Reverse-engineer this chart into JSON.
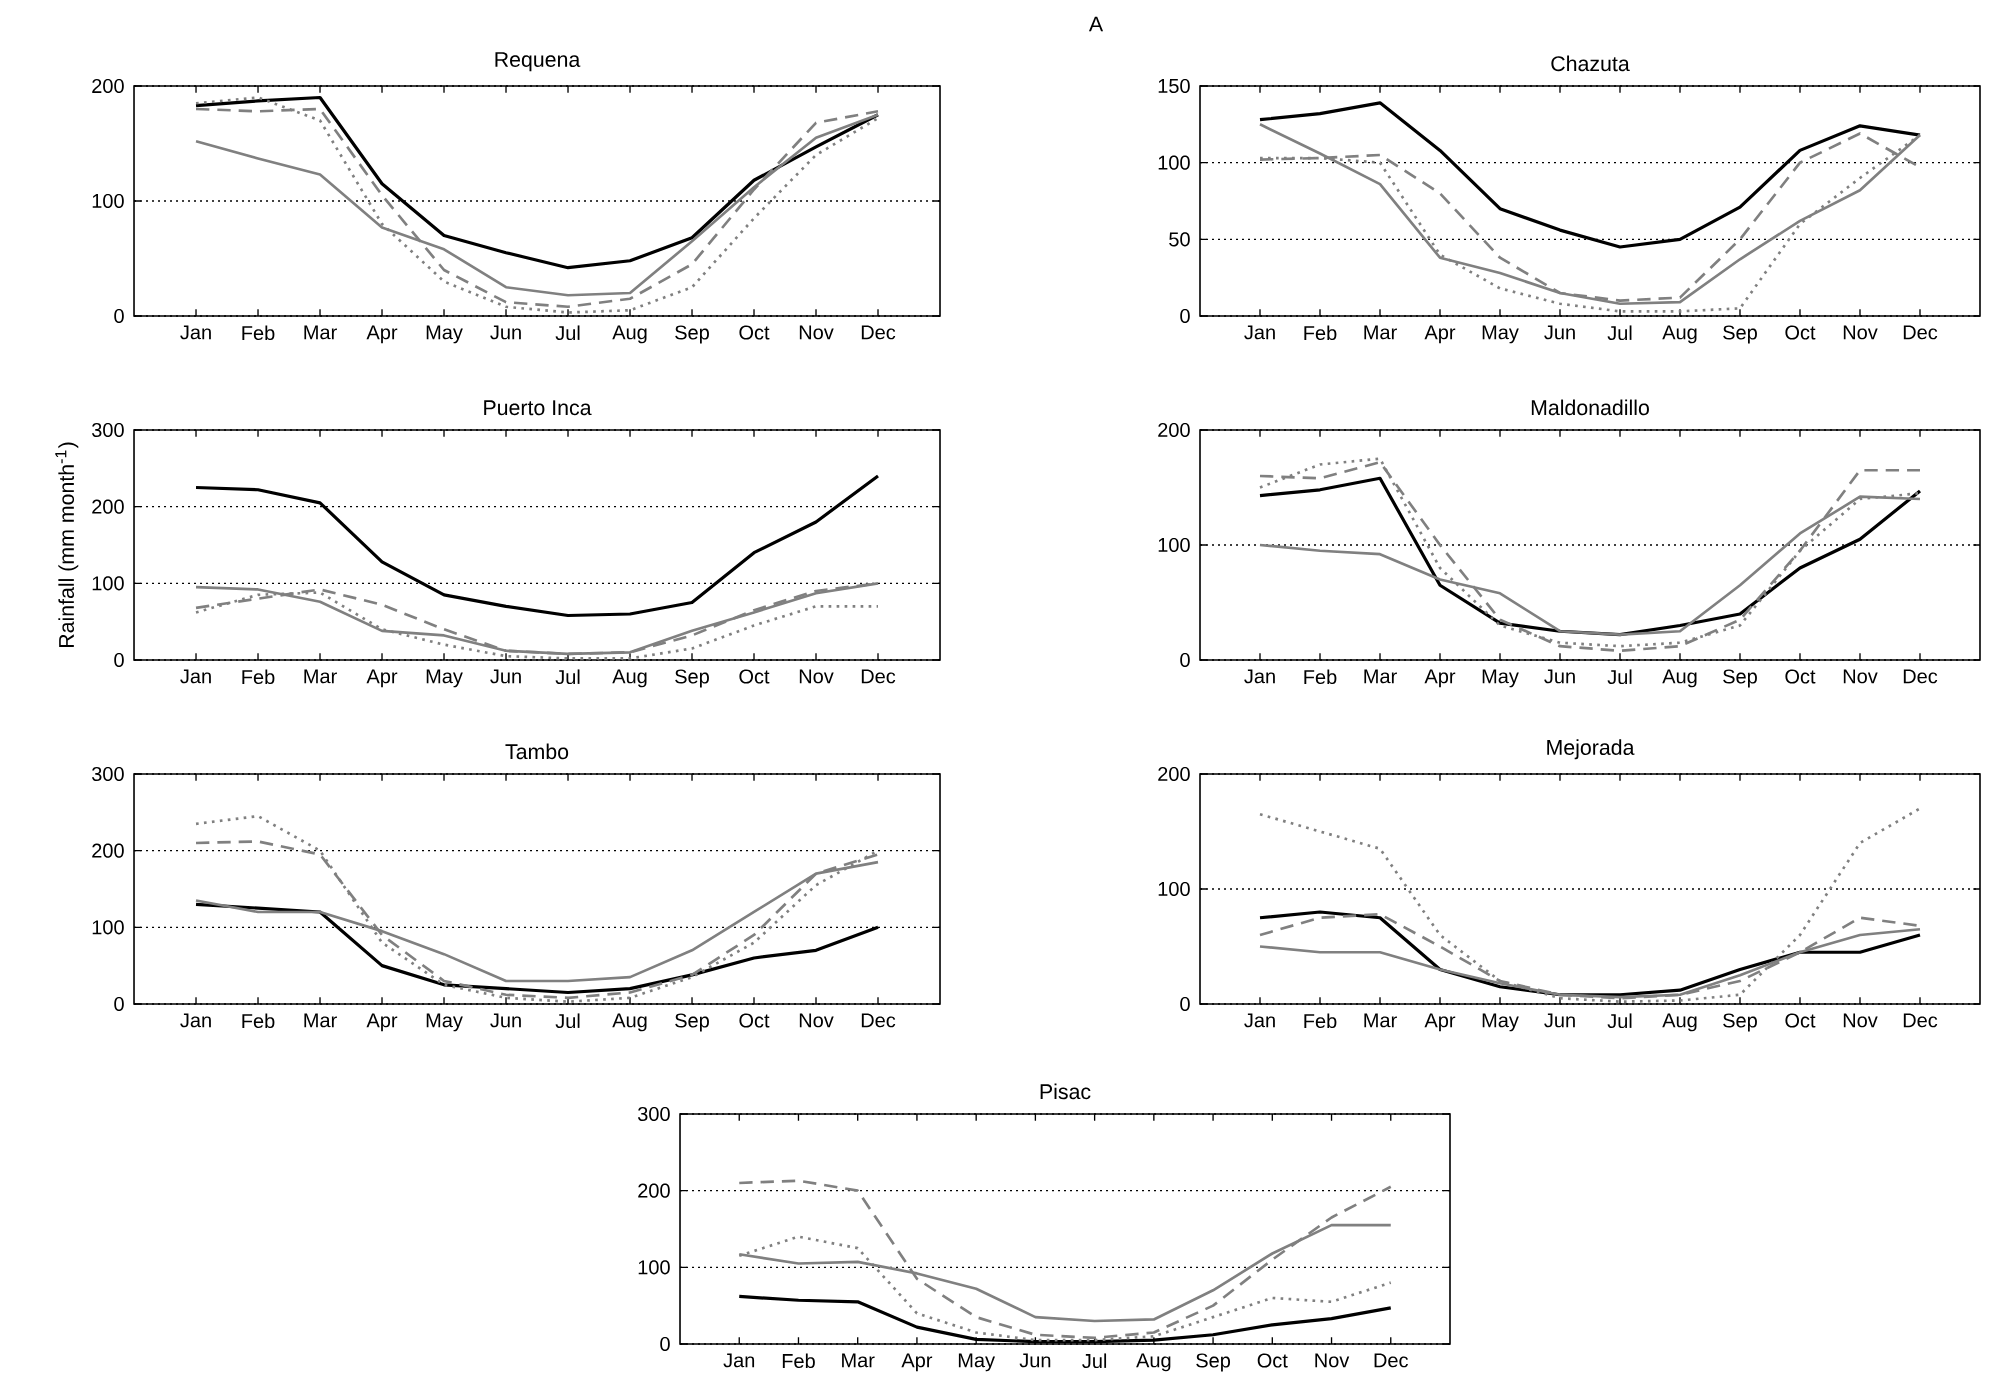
{
  "chart_data": [
    {
      "type": "line",
      "title": "Requena",
      "annotations": [
        "A"
      ],
      "categories": [
        "Jan",
        "Feb",
        "Mar",
        "Apr",
        "May",
        "Jun",
        "Jul",
        "Aug",
        "Sep",
        "Oct",
        "Nov",
        "Dec"
      ],
      "ylim": [
        0,
        200
      ],
      "yticks": [
        0,
        100,
        200
      ],
      "grid": "y",
      "series": [
        {
          "color": "#000000",
          "line_style": "solid",
          "values": [
            183,
            187,
            190,
            115,
            70,
            55,
            42,
            48,
            68,
            118,
            147,
            175
          ]
        },
        {
          "color": "#808080",
          "line_style": "solid",
          "values": [
            152,
            137,
            123,
            77,
            58,
            25,
            18,
            20,
            65,
            112,
            155,
            175
          ]
        },
        {
          "color": "#808080",
          "line_style": "dashed",
          "values": [
            180,
            178,
            180,
            105,
            40,
            12,
            8,
            15,
            45,
            110,
            168,
            178
          ]
        },
        {
          "color": "#808080",
          "line_style": "dotted",
          "values": [
            185,
            190,
            170,
            80,
            30,
            8,
            3,
            5,
            25,
            85,
            140,
            172
          ]
        }
      ]
    },
    {
      "type": "line",
      "title": "Chazuta",
      "categories": [
        "Jan",
        "Feb",
        "Mar",
        "Apr",
        "May",
        "Jun",
        "Jul",
        "Aug",
        "Sep",
        "Oct",
        "Nov",
        "Dec"
      ],
      "ylim": [
        0,
        150
      ],
      "yticks": [
        0,
        50,
        100,
        150
      ],
      "grid": "y",
      "series": [
        {
          "color": "#000000",
          "line_style": "solid",
          "values": [
            128,
            132,
            139,
            108,
            70,
            56,
            45,
            50,
            71,
            108,
            124,
            118
          ]
        },
        {
          "color": "#808080",
          "line_style": "solid",
          "values": [
            125,
            106,
            86,
            38,
            28,
            15,
            8,
            9,
            37,
            62,
            82,
            118
          ]
        },
        {
          "color": "#808080",
          "line_style": "dashed",
          "values": [
            102,
            103,
            105,
            80,
            38,
            15,
            10,
            12,
            50,
            100,
            119,
            97
          ]
        },
        {
          "color": "#808080",
          "line_style": "dotted",
          "values": [
            103,
            103,
            100,
            40,
            18,
            8,
            3,
            3,
            5,
            60,
            90,
            118
          ]
        }
      ]
    },
    {
      "type": "line",
      "title": "Puerto Inca",
      "ylabel": "Rainfall (mm month$^{-1}$)",
      "categories": [
        "Jan",
        "Feb",
        "Mar",
        "Apr",
        "May",
        "Jun",
        "Jul",
        "Aug",
        "Sep",
        "Oct",
        "Nov",
        "Dec"
      ],
      "ylim": [
        0,
        300
      ],
      "yticks": [
        0,
        100,
        200,
        300
      ],
      "grid": "y",
      "series": [
        {
          "color": "#000000",
          "line_style": "solid",
          "values": [
            225,
            222,
            205,
            128,
            85,
            70,
            58,
            60,
            75,
            140,
            180,
            240
          ]
        },
        {
          "color": "#808080",
          "line_style": "solid",
          "values": [
            95,
            92,
            76,
            38,
            32,
            12,
            8,
            10,
            38,
            62,
            87,
            100
          ]
        },
        {
          "color": "#808080",
          "line_style": "dashed",
          "values": [
            68,
            80,
            92,
            72,
            40,
            12,
            8,
            10,
            32,
            65,
            90,
            100
          ]
        },
        {
          "color": "#808080",
          "line_style": "dotted",
          "values": [
            62,
            85,
            88,
            40,
            20,
            5,
            2,
            2,
            15,
            45,
            70,
            70
          ]
        }
      ]
    },
    {
      "type": "line",
      "title": "Maldonadillo",
      "categories": [
        "Jan",
        "Feb",
        "Mar",
        "Apr",
        "May",
        "Jun",
        "Jul",
        "Aug",
        "Sep",
        "Oct",
        "Nov",
        "Dec"
      ],
      "ylim": [
        0,
        200
      ],
      "yticks": [
        0,
        100,
        200
      ],
      "grid": "y",
      "series": [
        {
          "color": "#000000",
          "line_style": "solid",
          "values": [
            143,
            148,
            158,
            65,
            32,
            25,
            22,
            30,
            40,
            80,
            105,
            147
          ]
        },
        {
          "color": "#808080",
          "line_style": "solid",
          "values": [
            100,
            95,
            92,
            70,
            58,
            25,
            22,
            25,
            65,
            110,
            142,
            140
          ]
        },
        {
          "color": "#808080",
          "line_style": "dashed",
          "values": [
            160,
            158,
            172,
            100,
            35,
            12,
            8,
            12,
            35,
            95,
            165,
            165
          ]
        },
        {
          "color": "#808080",
          "line_style": "dotted",
          "values": [
            150,
            170,
            175,
            80,
            30,
            15,
            12,
            15,
            30,
            95,
            140,
            145
          ]
        }
      ]
    },
    {
      "type": "line",
      "title": "Tambo",
      "categories": [
        "Jan",
        "Feb",
        "Mar",
        "Apr",
        "May",
        "Jun",
        "Jul",
        "Aug",
        "Sep",
        "Oct",
        "Nov",
        "Dec"
      ],
      "ylim": [
        0,
        300
      ],
      "yticks": [
        0,
        100,
        200,
        300
      ],
      "grid": "y",
      "series": [
        {
          "color": "#000000",
          "line_style": "solid",
          "values": [
            130,
            125,
            120,
            50,
            25,
            20,
            15,
            20,
            38,
            60,
            70,
            100
          ]
        },
        {
          "color": "#808080",
          "line_style": "solid",
          "values": [
            135,
            120,
            120,
            95,
            65,
            30,
            30,
            35,
            70,
            120,
            170,
            185
          ]
        },
        {
          "color": "#808080",
          "line_style": "dashed",
          "values": [
            210,
            212,
            195,
            90,
            30,
            12,
            8,
            15,
            38,
            90,
            170,
            195
          ]
        },
        {
          "color": "#808080",
          "line_style": "dotted",
          "values": [
            235,
            245,
            200,
            80,
            25,
            8,
            3,
            8,
            35,
            80,
            155,
            200
          ]
        }
      ]
    },
    {
      "type": "line",
      "title": "Mejorada",
      "categories": [
        "Jan",
        "Feb",
        "Mar",
        "Apr",
        "May",
        "Jun",
        "Jul",
        "Aug",
        "Sep",
        "Oct",
        "Nov",
        "Dec"
      ],
      "ylim": [
        0,
        200
      ],
      "yticks": [
        0,
        100,
        200
      ],
      "grid": "y",
      "series": [
        {
          "color": "#000000",
          "line_style": "solid",
          "values": [
            75,
            80,
            75,
            30,
            15,
            8,
            8,
            12,
            30,
            45,
            45,
            60
          ]
        },
        {
          "color": "#808080",
          "line_style": "solid",
          "values": [
            50,
            45,
            45,
            30,
            18,
            8,
            6,
            8,
            25,
            45,
            60,
            65
          ]
        },
        {
          "color": "#808080",
          "line_style": "dashed",
          "values": [
            60,
            75,
            78,
            50,
            20,
            8,
            5,
            8,
            20,
            45,
            75,
            68
          ]
        },
        {
          "color": "#808080",
          "line_style": "dotted",
          "values": [
            165,
            150,
            135,
            60,
            20,
            5,
            2,
            3,
            8,
            60,
            140,
            170
          ]
        }
      ]
    },
    {
      "type": "line",
      "title": "Pisac",
      "categories": [
        "Jan",
        "Feb",
        "Mar",
        "Apr",
        "May",
        "Jun",
        "Jul",
        "Aug",
        "Sep",
        "Oct",
        "Nov",
        "Dec"
      ],
      "ylim": [
        0,
        300
      ],
      "yticks": [
        0,
        100,
        200,
        300
      ],
      "grid": "y",
      "series": [
        {
          "color": "#000000",
          "line_style": "solid",
          "values": [
            62,
            57,
            55,
            22,
            6,
            3,
            3,
            5,
            12,
            25,
            33,
            47
          ]
        },
        {
          "color": "#808080",
          "line_style": "solid",
          "values": [
            117,
            105,
            107,
            92,
            72,
            35,
            30,
            32,
            70,
            118,
            155,
            155
          ]
        },
        {
          "color": "#808080",
          "line_style": "dashed",
          "values": [
            210,
            213,
            200,
            85,
            35,
            12,
            8,
            15,
            50,
            110,
            165,
            205
          ]
        },
        {
          "color": "#808080",
          "line_style": "dotted",
          "values": [
            115,
            140,
            125,
            40,
            15,
            5,
            5,
            10,
            35,
            60,
            55,
            80
          ]
        }
      ]
    }
  ]
}
